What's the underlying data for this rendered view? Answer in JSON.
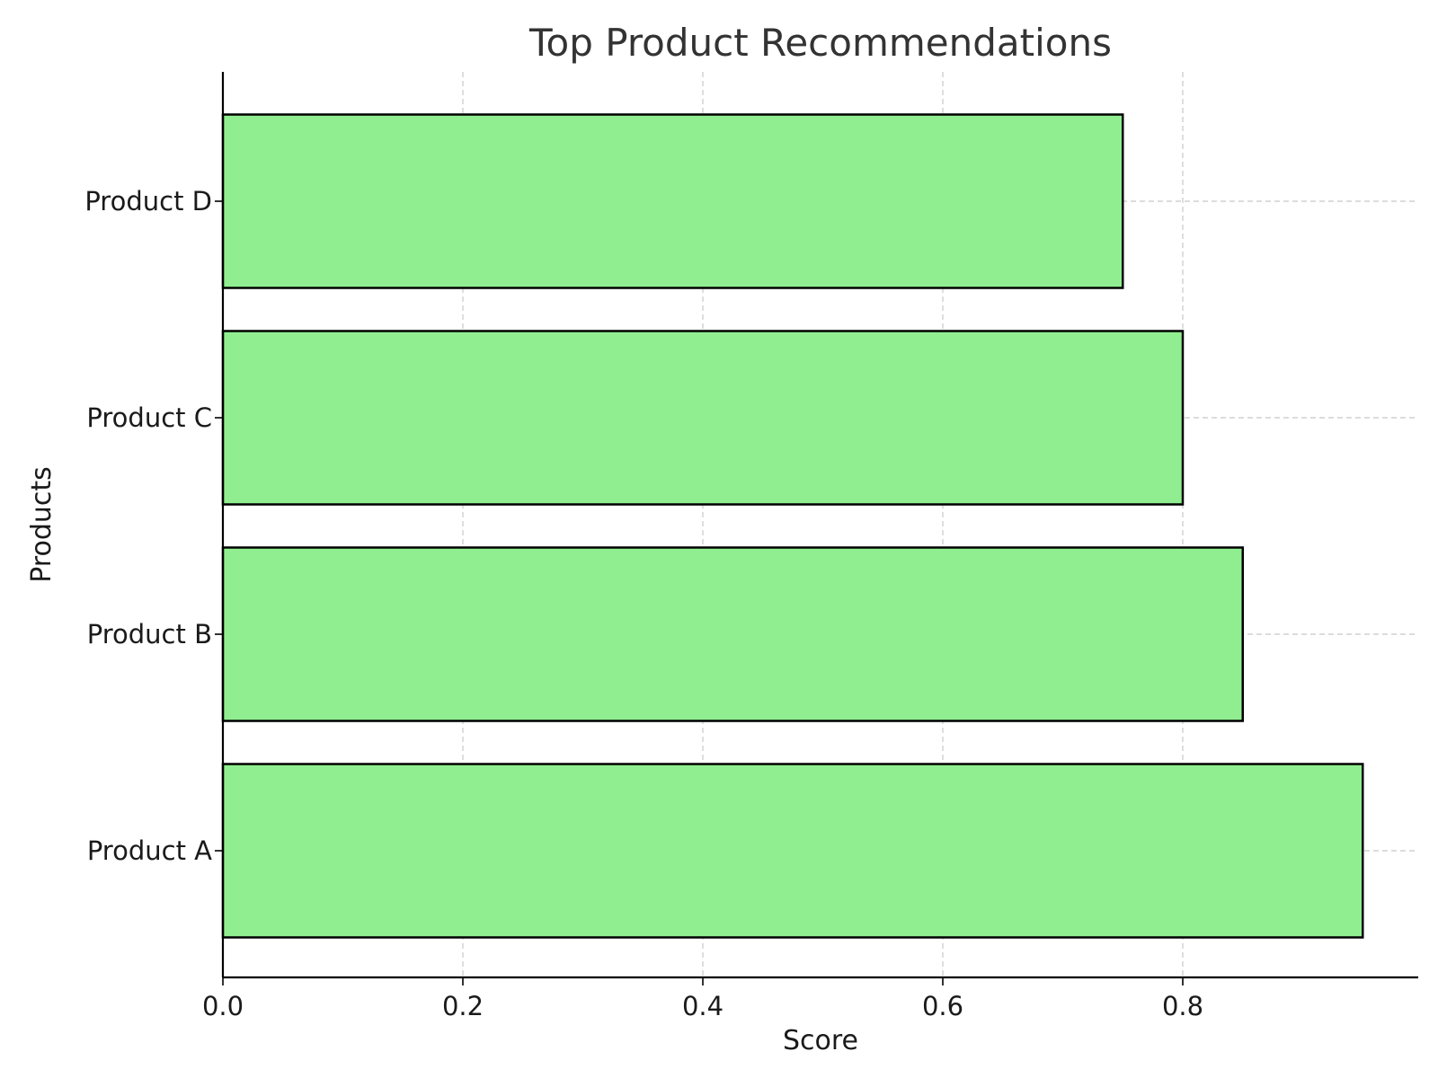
{
  "chart_data": {
    "type": "bar",
    "orientation": "horizontal",
    "title": "Top Product Recommendations",
    "xlabel": "Score",
    "ylabel": "Products",
    "categories": [
      "Product A",
      "Product B",
      "Product C",
      "Product D"
    ],
    "values": [
      0.95,
      0.85,
      0.8,
      0.75
    ],
    "xlim": [
      0,
      1.0
    ],
    "xticks": [
      "0.0",
      "0.2",
      "0.4",
      "0.6",
      "0.8"
    ],
    "grid": true,
    "bar_color": "#90ee90",
    "edge_color": "#000000"
  }
}
